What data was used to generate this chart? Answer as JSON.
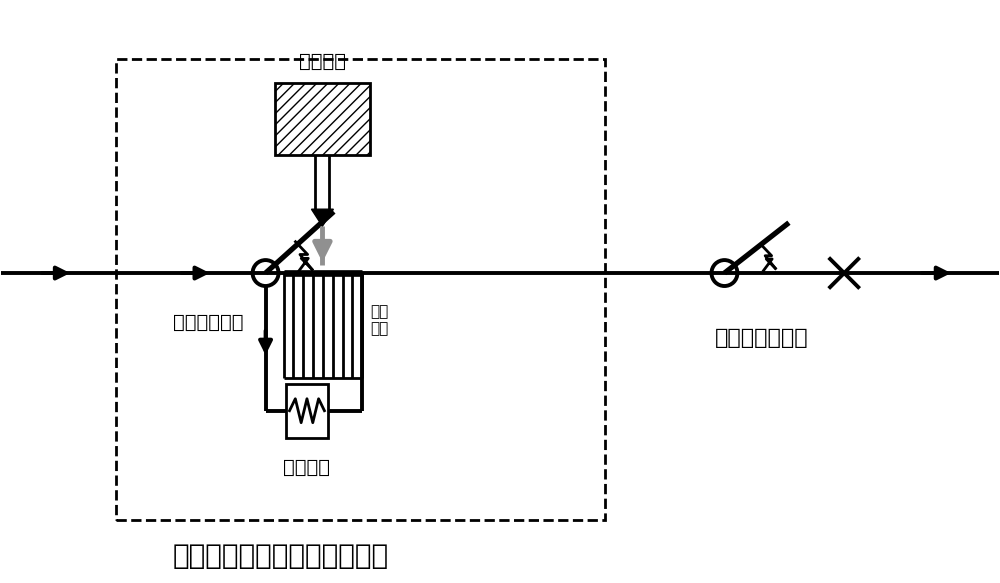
{
  "title_bottom": "弧压增强型空气式断路器模块",
  "label_compressed_gas": "压缩气缸",
  "label_arc_grid": "灭弧\n栅片",
  "label_air_breaker": "空气式断路器",
  "label_damper": "阻尼元件",
  "label_vacuum_breaker": "快速真空断路器",
  "bg_color": "#ffffff",
  "line_color": "#000000",
  "font_size_small": 11,
  "font_size_label": 14,
  "font_size_title": 20,
  "fig_width": 10.0,
  "fig_height": 5.83
}
